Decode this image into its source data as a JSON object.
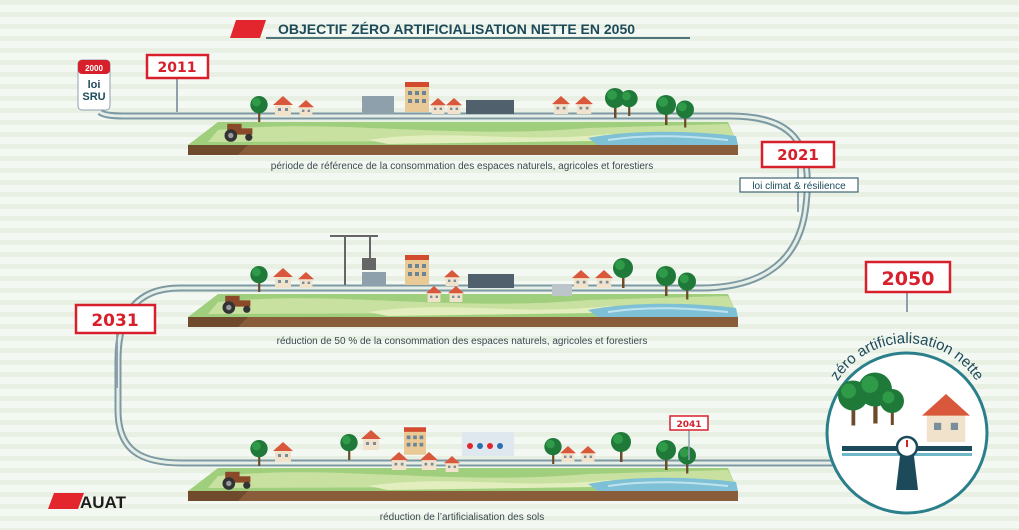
{
  "header": {
    "title": "OBJECTIF ZÉRO ARTIFICIALISATION NETTE EN 2050"
  },
  "milestones": [
    {
      "year": "2000",
      "label": "loi\nSRU"
    },
    {
      "year": "2011"
    },
    {
      "year": "2021",
      "label": "loi climat & résilience"
    },
    {
      "year": "2031"
    },
    {
      "year": "2041"
    },
    {
      "year": "2050",
      "label": "zéro artificialisation nette"
    }
  ],
  "periods": [
    {
      "caption": "période de référence de la consommation des espaces naturels, agricoles et forestiers"
    },
    {
      "caption": "réduction de 50 % de la consommation des espaces naturels, agricoles et forestiers"
    },
    {
      "caption": "réduction de l’artificialisation des sols"
    }
  ],
  "logo": "AUAT"
}
